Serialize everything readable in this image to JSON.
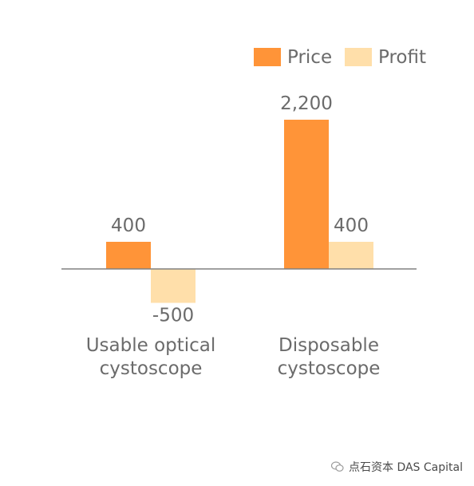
{
  "chart_data": {
    "type": "bar",
    "categories": [
      "Usable optical cystoscope",
      "Disposable cystoscope"
    ],
    "category_lines": [
      [
        "Usable optical",
        "cystoscope"
      ],
      [
        "Disposable",
        "cystoscope"
      ]
    ],
    "series": [
      {
        "name": "Price",
        "values": [
          400,
          2200
        ],
        "labels": [
          "400",
          "2,200"
        ],
        "color": "#FF9438"
      },
      {
        "name": "Profit",
        "values": [
          -500,
          400
        ],
        "labels": [
          "-500",
          "400"
        ],
        "color": "#FFDFAA"
      }
    ],
    "ylim": [
      -500,
      2200
    ],
    "grid": false,
    "legend": "top-right",
    "axis_color": "#808080"
  },
  "watermark": {
    "text": "点石资本 DAS Capital",
    "icon": "wechat-icon"
  }
}
